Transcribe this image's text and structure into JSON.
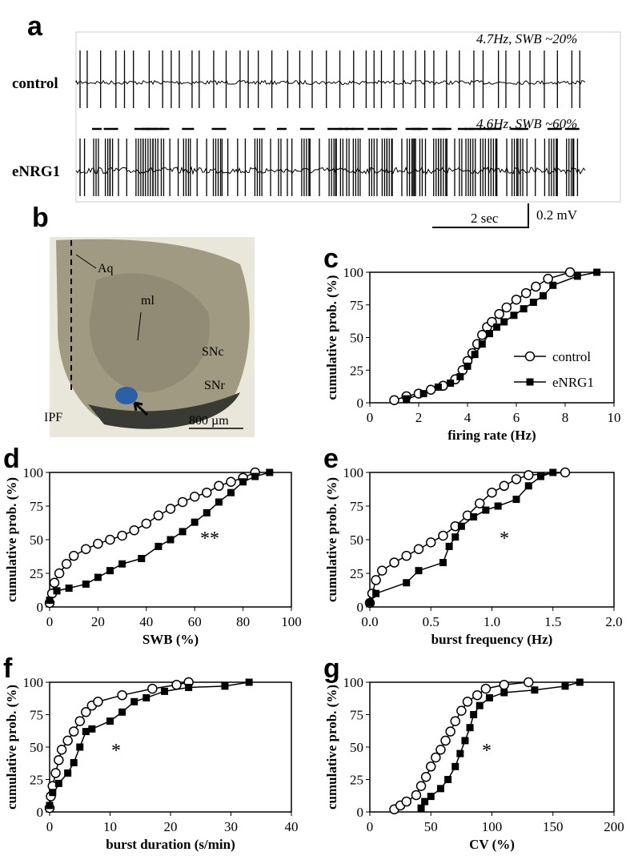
{
  "panel_a": {
    "label": "a",
    "rows": [
      {
        "name": "control",
        "note": "4.7Hz, SWB ~20%"
      },
      {
        "name": "eNRG1",
        "note": "4.6Hz, SWB ~60%"
      }
    ],
    "scale_time": "2 sec",
    "scale_voltage": "0.2 mV"
  },
  "panel_b": {
    "label": "b",
    "regions": [
      "Aq",
      "ml",
      "SNc",
      "SNr",
      "IPF"
    ],
    "scale": "800 µm"
  },
  "chart_data": [
    {
      "type": "line",
      "label": "c",
      "x_label": "firing rate (Hz)",
      "y_label": "cumulative prob. (%)",
      "xlim": [
        0,
        10
      ],
      "xticks": [
        0,
        2,
        4,
        6,
        8,
        10
      ],
      "ylim": [
        0,
        100
      ],
      "yticks": [
        0,
        25,
        50,
        75,
        100
      ],
      "legend": "lower right",
      "series": [
        {
          "name": "control",
          "color": "#000000",
          "marker": "circle",
          "x": [
            1.0,
            1.5,
            2.0,
            2.5,
            3.0,
            3.5,
            3.8,
            4.0,
            4.2,
            4.4,
            4.6,
            4.8,
            5.0,
            5.3,
            5.6,
            6.0,
            6.4,
            6.8,
            7.3,
            8.2
          ],
          "values": [
            2,
            5,
            7,
            10,
            13,
            18,
            25,
            32,
            38,
            45,
            52,
            58,
            62,
            68,
            73,
            79,
            84,
            89,
            95,
            100
          ]
        },
        {
          "name": "eNRG1",
          "color": "#000000",
          "marker": "square",
          "x": [
            1.5,
            2.2,
            2.8,
            3.3,
            3.7,
            4.0,
            4.3,
            4.6,
            4.9,
            5.2,
            5.5,
            5.9,
            6.3,
            6.7,
            7.1,
            7.5,
            8.5,
            9.3
          ],
          "values": [
            3,
            7,
            12,
            15,
            20,
            28,
            37,
            45,
            53,
            58,
            62,
            67,
            72,
            77,
            82,
            90,
            97,
            100
          ]
        }
      ]
    },
    {
      "type": "line",
      "label": "d",
      "x_label": "SWB (%)",
      "y_label": "cumulative prob. (%)",
      "annotation": "**",
      "xlim": [
        0,
        100
      ],
      "xticks": [
        0,
        20,
        40,
        60,
        80,
        100
      ],
      "ylim": [
        0,
        100
      ],
      "yticks": [
        0,
        25,
        50,
        75,
        100
      ],
      "series": [
        {
          "color": "#000000",
          "marker": "circle",
          "x": [
            0,
            1,
            2,
            4,
            7,
            10,
            15,
            20,
            25,
            30,
            35,
            40,
            45,
            50,
            55,
            60,
            65,
            70,
            75,
            80,
            85
          ],
          "values": [
            3,
            10,
            18,
            25,
            32,
            38,
            43,
            47,
            50,
            53,
            57,
            62,
            68,
            73,
            78,
            82,
            85,
            90,
            93,
            96,
            100
          ]
        },
        {
          "color": "#000000",
          "marker": "square",
          "x": [
            0,
            3,
            8,
            15,
            20,
            25,
            30,
            38,
            45,
            50,
            55,
            60,
            65,
            70,
            75,
            80,
            85,
            91
          ],
          "values": [
            5,
            12,
            14,
            17,
            22,
            27,
            32,
            36,
            45,
            50,
            56,
            63,
            70,
            78,
            85,
            93,
            97,
            100
          ]
        }
      ]
    },
    {
      "type": "line",
      "label": "e",
      "x_label": "burst frequency (Hz)",
      "y_label": "cumulative prob. (%)",
      "annotation": "*",
      "xlim": [
        0,
        2
      ],
      "xticks": [
        {
          "value": 0,
          "label": "0.0"
        },
        0.5,
        {
          "value": 1,
          "label": "1.0"
        },
        1.5,
        {
          "value": 2,
          "label": "2.0"
        }
      ],
      "ylim": [
        0,
        100
      ],
      "yticks": [
        0,
        25,
        50,
        75,
        100
      ],
      "series": [
        {
          "color": "#000000",
          "marker": "circle",
          "x": [
            0,
            0.02,
            0.05,
            0.1,
            0.2,
            0.3,
            0.4,
            0.5,
            0.6,
            0.7,
            0.8,
            0.9,
            1.0,
            1.1,
            1.2,
            1.3,
            1.6
          ],
          "values": [
            3,
            10,
            20,
            27,
            33,
            38,
            43,
            48,
            53,
            60,
            68,
            77,
            85,
            90,
            95,
            98,
            100
          ]
        },
        {
          "color": "#000000",
          "marker": "square",
          "x": [
            0,
            0.05,
            0.3,
            0.4,
            0.6,
            0.65,
            0.7,
            0.75,
            0.85,
            0.95,
            1.05,
            1.2,
            1.3,
            1.4,
            1.5
          ],
          "values": [
            3,
            10,
            18,
            27,
            33,
            45,
            52,
            60,
            67,
            72,
            75,
            80,
            90,
            97,
            100
          ]
        }
      ]
    },
    {
      "type": "line",
      "label": "f",
      "x_label": "burst duration (s/min)",
      "y_label": "cumulative prob. (%)",
      "annotation": "*",
      "xlim": [
        0,
        40
      ],
      "xticks": [
        0,
        10,
        20,
        30,
        40
      ],
      "ylim": [
        0,
        100
      ],
      "yticks": [
        0,
        25,
        50,
        75,
        100
      ],
      "series": [
        {
          "color": "#000000",
          "marker": "circle",
          "x": [
            0,
            0.2,
            0.5,
            1,
            1.5,
            2,
            3,
            4,
            5,
            6,
            7,
            8,
            12,
            17,
            21,
            23
          ],
          "values": [
            3,
            12,
            20,
            30,
            40,
            48,
            55,
            62,
            70,
            77,
            82,
            85,
            90,
            95,
            98,
            100
          ]
        },
        {
          "color": "#000000",
          "marker": "square",
          "x": [
            0,
            0.5,
            1.5,
            3,
            4,
            5,
            6,
            7,
            10,
            12,
            14,
            16,
            19,
            23,
            29,
            33
          ],
          "values": [
            5,
            15,
            22,
            30,
            38,
            50,
            62,
            64,
            70,
            77,
            85,
            88,
            93,
            96,
            97,
            100
          ]
        }
      ]
    },
    {
      "type": "line",
      "label": "g",
      "x_label": "CV (%)",
      "y_label": "cumulative prob. (%)",
      "annotation": "*",
      "xlim": [
        0,
        200
      ],
      "xticks": [
        0,
        50,
        100,
        150,
        200
      ],
      "ylim": [
        0,
        100
      ],
      "yticks": [
        0,
        25,
        50,
        75,
        100
      ],
      "series": [
        {
          "color": "#000000",
          "marker": "circle",
          "x": [
            20,
            25,
            30,
            38,
            42,
            46,
            50,
            54,
            58,
            62,
            66,
            70,
            75,
            80,
            88,
            95,
            110,
            130
          ],
          "values": [
            2,
            5,
            8,
            13,
            20,
            27,
            35,
            42,
            48,
            55,
            62,
            70,
            78,
            85,
            90,
            95,
            98,
            100
          ]
        },
        {
          "color": "#000000",
          "marker": "square",
          "x": [
            42,
            45,
            50,
            58,
            64,
            70,
            74,
            78,
            82,
            85,
            90,
            98,
            110,
            135,
            160,
            172
          ],
          "values": [
            3,
            8,
            12,
            18,
            25,
            35,
            45,
            55,
            65,
            75,
            82,
            88,
            92,
            94,
            97,
            100
          ]
        }
      ]
    }
  ]
}
